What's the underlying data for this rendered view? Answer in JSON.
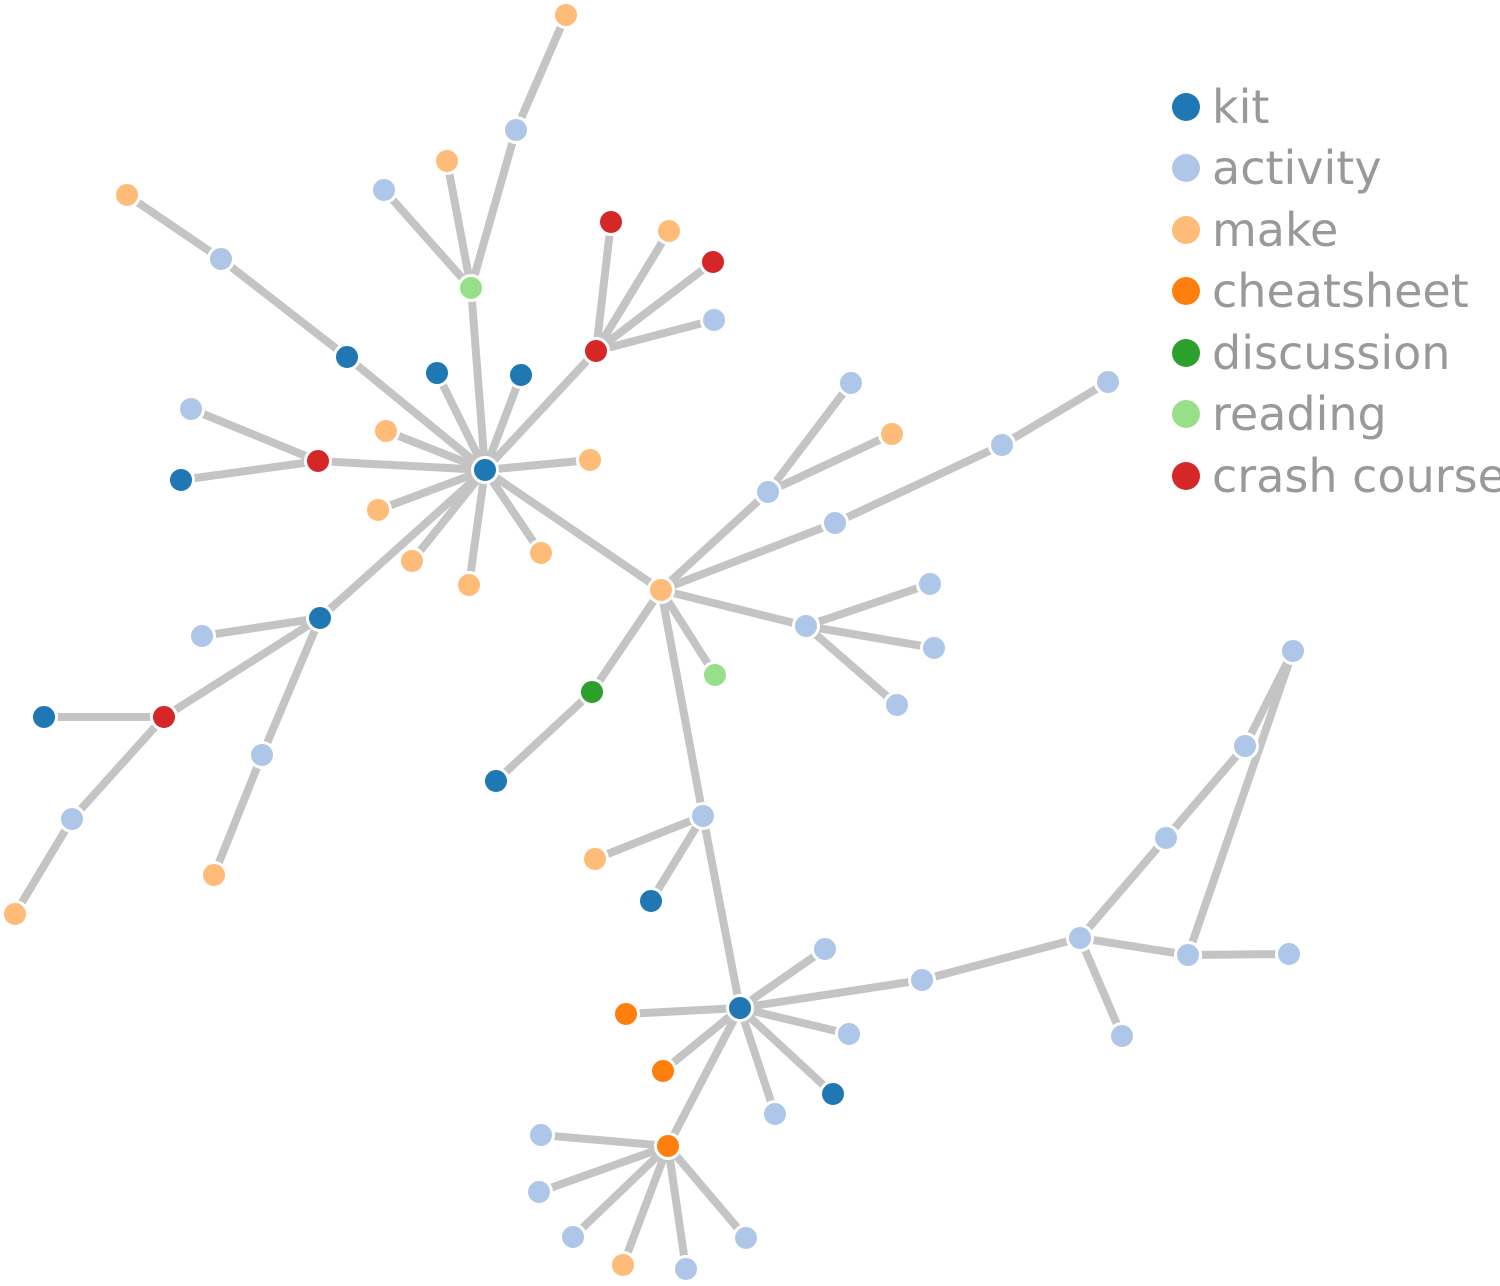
{
  "legend": [
    {
      "key": "kit",
      "label": "kit",
      "color": "#1f77b4"
    },
    {
      "key": "activity",
      "label": "activity",
      "color": "#aec7e8"
    },
    {
      "key": "make",
      "label": "make",
      "color": "#ffbb78"
    },
    {
      "key": "cheatsheet",
      "label": "cheatsheet",
      "color": "#ff7f0e"
    },
    {
      "key": "discussion",
      "label": "discussion",
      "color": "#2ca02c"
    },
    {
      "key": "reading",
      "label": "reading",
      "color": "#98df8a"
    },
    {
      "key": "crash_course",
      "label": "crash course",
      "color": "#d62728"
    }
  ],
  "edge_color": "#c4c4c4",
  "graph": {
    "nodes": [
      {
        "id": "n0",
        "type": "kit"
      },
      {
        "id": "n1",
        "type": "reading"
      },
      {
        "id": "n2",
        "type": "activity"
      },
      {
        "id": "n3",
        "type": "make"
      },
      {
        "id": "n4",
        "type": "activity"
      },
      {
        "id": "n5",
        "type": "make"
      },
      {
        "id": "n6",
        "type": "kit"
      },
      {
        "id": "n7",
        "type": "activity"
      },
      {
        "id": "n8",
        "type": "make"
      },
      {
        "id": "n9",
        "type": "crash_course"
      },
      {
        "id": "n10",
        "type": "crash_course"
      },
      {
        "id": "n11",
        "type": "make"
      },
      {
        "id": "n12",
        "type": "crash_course"
      },
      {
        "id": "n13",
        "type": "activity"
      },
      {
        "id": "n14",
        "type": "kit"
      },
      {
        "id": "n15",
        "type": "kit"
      },
      {
        "id": "n16",
        "type": "make"
      },
      {
        "id": "n17",
        "type": "make"
      },
      {
        "id": "n18",
        "type": "crash_course"
      },
      {
        "id": "n19",
        "type": "activity"
      },
      {
        "id": "n20",
        "type": "kit"
      },
      {
        "id": "n21",
        "type": "make"
      },
      {
        "id": "n22",
        "type": "make"
      },
      {
        "id": "n23",
        "type": "make"
      },
      {
        "id": "n24",
        "type": "make"
      },
      {
        "id": "n25",
        "type": "kit"
      },
      {
        "id": "n26",
        "type": "activity"
      },
      {
        "id": "n27",
        "type": "crash_course"
      },
      {
        "id": "n28",
        "type": "kit"
      },
      {
        "id": "n29",
        "type": "activity"
      },
      {
        "id": "n30",
        "type": "make"
      },
      {
        "id": "n31",
        "type": "activity"
      },
      {
        "id": "n32",
        "type": "make"
      },
      {
        "id": "n33",
        "type": "make"
      },
      {
        "id": "n34",
        "type": "activity"
      },
      {
        "id": "n35",
        "type": "activity"
      },
      {
        "id": "n36",
        "type": "make"
      },
      {
        "id": "n37",
        "type": "activity"
      },
      {
        "id": "n38",
        "type": "activity"
      },
      {
        "id": "n39",
        "type": "activity"
      },
      {
        "id": "n40",
        "type": "activity"
      },
      {
        "id": "n41",
        "type": "activity"
      },
      {
        "id": "n42",
        "type": "activity"
      },
      {
        "id": "n43",
        "type": "activity"
      },
      {
        "id": "n44",
        "type": "reading"
      },
      {
        "id": "n45",
        "type": "discussion"
      },
      {
        "id": "n46",
        "type": "kit"
      },
      {
        "id": "n47",
        "type": "activity"
      },
      {
        "id": "n48",
        "type": "make"
      },
      {
        "id": "n49",
        "type": "kit"
      },
      {
        "id": "n50",
        "type": "kit"
      },
      {
        "id": "n51",
        "type": "activity"
      },
      {
        "id": "n52",
        "type": "activity"
      },
      {
        "id": "n53",
        "type": "kit"
      },
      {
        "id": "n54",
        "type": "activity"
      },
      {
        "id": "n55",
        "type": "cheatsheet"
      },
      {
        "id": "n56",
        "type": "cheatsheet"
      },
      {
        "id": "n57",
        "type": "cheatsheet"
      },
      {
        "id": "n58",
        "type": "activity"
      },
      {
        "id": "n59",
        "type": "activity"
      },
      {
        "id": "n60",
        "type": "activity"
      },
      {
        "id": "n61",
        "type": "make"
      },
      {
        "id": "n62",
        "type": "activity"
      },
      {
        "id": "n63",
        "type": "activity"
      },
      {
        "id": "n64",
        "type": "activity"
      },
      {
        "id": "n65",
        "type": "activity"
      },
      {
        "id": "n66",
        "type": "activity"
      },
      {
        "id": "n67",
        "type": "activity"
      },
      {
        "id": "n68",
        "type": "activity"
      },
      {
        "id": "n69",
        "type": "activity"
      },
      {
        "id": "n70",
        "type": "activity"
      },
      {
        "id": "n71",
        "type": "activity"
      },
      {
        "id": "n72",
        "type": "activity"
      }
    ],
    "edges": [
      [
        "n0",
        "n1"
      ],
      [
        "n1",
        "n2"
      ],
      [
        "n1",
        "n3"
      ],
      [
        "n1",
        "n4"
      ],
      [
        "n4",
        "n5"
      ],
      [
        "n0",
        "n6"
      ],
      [
        "n6",
        "n7"
      ],
      [
        "n7",
        "n8"
      ],
      [
        "n0",
        "n9"
      ],
      [
        "n9",
        "n10"
      ],
      [
        "n9",
        "n11"
      ],
      [
        "n9",
        "n12"
      ],
      [
        "n9",
        "n13"
      ],
      [
        "n0",
        "n14"
      ],
      [
        "n0",
        "n15"
      ],
      [
        "n0",
        "n16"
      ],
      [
        "n0",
        "n17"
      ],
      [
        "n0",
        "n18"
      ],
      [
        "n18",
        "n19"
      ],
      [
        "n18",
        "n20"
      ],
      [
        "n0",
        "n21"
      ],
      [
        "n0",
        "n22"
      ],
      [
        "n0",
        "n23"
      ],
      [
        "n0",
        "n24"
      ],
      [
        "n0",
        "n25"
      ],
      [
        "n25",
        "n26"
      ],
      [
        "n25",
        "n27"
      ],
      [
        "n27",
        "n28"
      ],
      [
        "n27",
        "n29"
      ],
      [
        "n29",
        "n30"
      ],
      [
        "n25",
        "n31"
      ],
      [
        "n31",
        "n32"
      ],
      [
        "n0",
        "n33"
      ],
      [
        "n33",
        "n34"
      ],
      [
        "n34",
        "n35"
      ],
      [
        "n34",
        "n36"
      ],
      [
        "n33",
        "n37"
      ],
      [
        "n37",
        "n38"
      ],
      [
        "n38",
        "n39"
      ],
      [
        "n33",
        "n40"
      ],
      [
        "n40",
        "n41"
      ],
      [
        "n40",
        "n42"
      ],
      [
        "n40",
        "n43"
      ],
      [
        "n33",
        "n44"
      ],
      [
        "n33",
        "n45"
      ],
      [
        "n45",
        "n46"
      ],
      [
        "n33",
        "n47"
      ],
      [
        "n47",
        "n48"
      ],
      [
        "n47",
        "n49"
      ],
      [
        "n47",
        "n50"
      ],
      [
        "n50",
        "n51"
      ],
      [
        "n50",
        "n52"
      ],
      [
        "n50",
        "n53"
      ],
      [
        "n50",
        "n54"
      ],
      [
        "n50",
        "n55"
      ],
      [
        "n50",
        "n56"
      ],
      [
        "n50",
        "n57"
      ],
      [
        "n57",
        "n58"
      ],
      [
        "n57",
        "n59"
      ],
      [
        "n57",
        "n60"
      ],
      [
        "n57",
        "n61"
      ],
      [
        "n57",
        "n62"
      ],
      [
        "n57",
        "n63"
      ],
      [
        "n50",
        "n64"
      ],
      [
        "n64",
        "n65"
      ],
      [
        "n65",
        "n66"
      ],
      [
        "n66",
        "n67"
      ],
      [
        "n67",
        "n68"
      ],
      [
        "n68",
        "n69"
      ],
      [
        "n65",
        "n70"
      ],
      [
        "n70",
        "n71"
      ],
      [
        "n65",
        "n72"
      ]
    ]
  }
}
